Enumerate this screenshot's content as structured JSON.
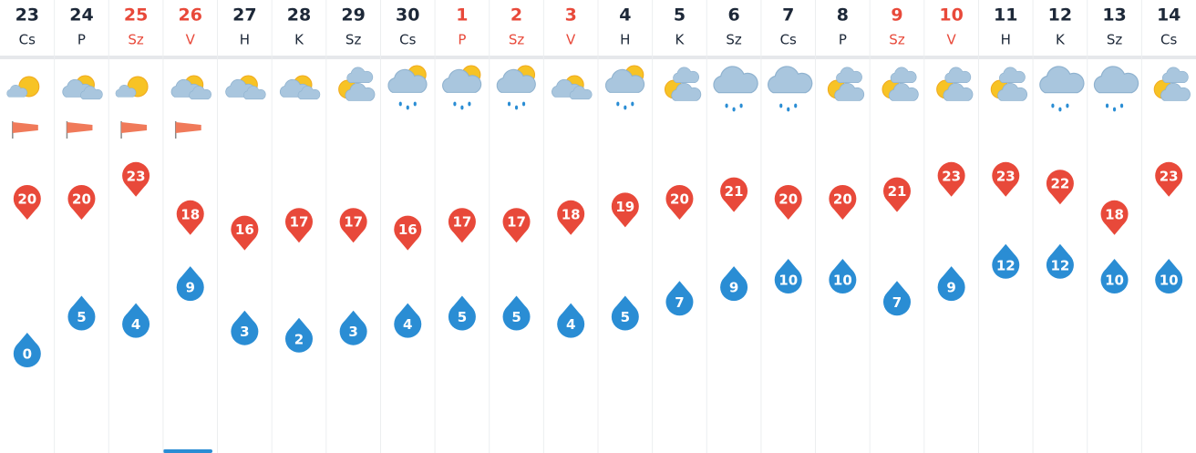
{
  "days": [
    {
      "date": "23",
      "weekday": "Cs",
      "max": 20,
      "min": 0
    },
    {
      "date": "24",
      "weekday": "P",
      "max": 20,
      "min": 5
    },
    {
      "date": "25",
      "weekday": "Sz",
      "max": 23,
      "min": 4,
      "highlight": true
    },
    {
      "date": "26",
      "weekday": "V",
      "max": 18,
      "min": 9,
      "highlight": true
    },
    {
      "date": "27",
      "weekday": "H",
      "max": 16,
      "min": 3
    },
    {
      "date": "28",
      "weekday": "K",
      "max": 17,
      "min": 2
    },
    {
      "date": "29",
      "weekday": "Sz",
      "max": 17,
      "min": 3
    },
    {
      "date": "30",
      "weekday": "Cs",
      "max": 16,
      "min": 4
    },
    {
      "date": "1",
      "weekday": "P",
      "max": 17,
      "min": 5,
      "highlight": true
    },
    {
      "date": "2",
      "weekday": "Sz",
      "max": 17,
      "min": 5,
      "highlight": true
    },
    {
      "date": "3",
      "weekday": "V",
      "max": 18,
      "min": 4,
      "highlight": true
    },
    {
      "date": "4",
      "weekday": "H",
      "max": 19,
      "min": 5
    },
    {
      "date": "5",
      "weekday": "K",
      "max": 20,
      "min": 7
    },
    {
      "date": "6",
      "weekday": "Sz",
      "max": 21,
      "min": 9
    },
    {
      "date": "7",
      "weekday": "Cs",
      "max": 20,
      "min": 10
    },
    {
      "date": "8",
      "weekday": "P",
      "max": 20,
      "min": 10
    },
    {
      "date": "9",
      "weekday": "Sz",
      "max": 21,
      "min": 7,
      "highlight": true
    },
    {
      "date": "10",
      "weekday": "V",
      "max": 23,
      "min": 9,
      "highlight": true
    },
    {
      "date": "11",
      "weekday": "H",
      "max": 23,
      "min": 12
    },
    {
      "date": "12",
      "weekday": "K",
      "max": 22,
      "min": 12
    },
    {
      "date": "13",
      "weekday": "Sz",
      "max": 18,
      "min": 10
    },
    {
      "date": "14",
      "weekday": "Cs",
      "max": 23,
      "min": 10
    }
  ]
}
